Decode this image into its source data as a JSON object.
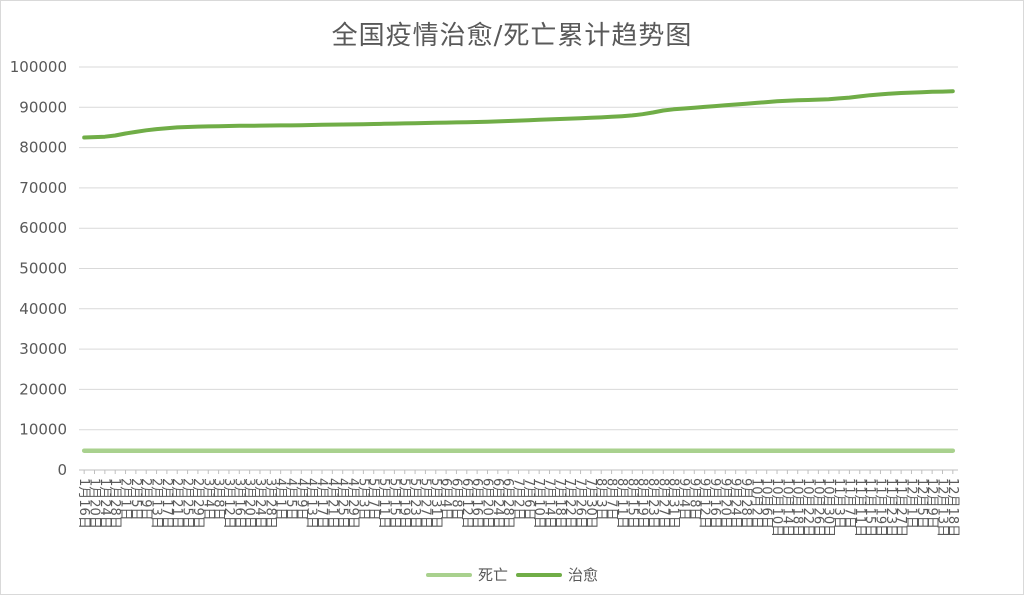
{
  "chart_data": {
    "type": "line",
    "title": "全国疫情治愈/死亡累计趋势图",
    "xlabel": "",
    "ylabel": "",
    "ylim": [
      0,
      100000
    ],
    "yticks": [
      0,
      10000,
      20000,
      30000,
      40000,
      50000,
      60000,
      70000,
      80000,
      90000,
      100000
    ],
    "grid": true,
    "legend_position": "bottom",
    "x": [
      "1月16日",
      "1月20日",
      "1月24日",
      "1月28日",
      "2月1日",
      "2月5日",
      "2月9日",
      "2月13日",
      "2月17日",
      "2月21日",
      "2月25日",
      "2月29日",
      "3月4日",
      "3月8日",
      "3月12日",
      "3月16日",
      "3月20日",
      "3月24日",
      "3月28日",
      "4月1日",
      "4月5日",
      "4月9日",
      "4月13日",
      "4月17日",
      "4月21日",
      "4月25日",
      "4月29日",
      "5月3日",
      "5月7日",
      "5月11日",
      "5月15日",
      "5月19日",
      "5月23日",
      "5月27日",
      "5月31日",
      "6月4日",
      "6月8日",
      "6月12日",
      "6月16日",
      "6月20日",
      "6月24日",
      "6月28日",
      "7月2日",
      "7月6日",
      "7月10日",
      "7月14日",
      "7月18日",
      "7月22日",
      "7月26日",
      "7月30日",
      "8月3日",
      "8月7日",
      "8月11日",
      "8月15日",
      "8月19日",
      "8月23日",
      "8月27日",
      "8月31日",
      "9月4日",
      "9月8日",
      "9月12日",
      "9月16日",
      "9月20日",
      "9月24日",
      "9月28日",
      "10月2日",
      "10月6日",
      "10月10日",
      "10月14日",
      "10月18日",
      "10月22日",
      "10月26日",
      "10月30日",
      "11月3日",
      "11月7日",
      "11月11日",
      "11月15日",
      "11月19日",
      "11月23日",
      "11月27日",
      "12月1日",
      "12月5日",
      "12月9日",
      "12月13日",
      "12月18日"
    ],
    "series": [
      {
        "name": "死亡",
        "color": "#a9d18e",
        "values": [
          4800,
          4800,
          4800,
          4800,
          4800,
          4800,
          4800,
          4800,
          4800,
          4800,
          4800,
          4800,
          4800,
          4800,
          4800,
          4800,
          4800,
          4800,
          4800,
          4800,
          4800,
          4800,
          4800,
          4800,
          4800,
          4800,
          4800,
          4800,
          4800,
          4800,
          4800,
          4800,
          4800,
          4800,
          4800,
          4800,
          4800,
          4800,
          4800,
          4800,
          4800,
          4800,
          4800,
          4800,
          4800,
          4800,
          4800,
          4800,
          4800,
          4800,
          4800,
          4800,
          4800,
          4800,
          4800,
          4800,
          4800,
          4800,
          4800,
          4800,
          4800,
          4800,
          4800,
          4800,
          4800,
          4800,
          4800,
          4800,
          4800,
          4800,
          4800,
          4800,
          4800,
          4800,
          4800,
          4800,
          4800,
          4800,
          4800,
          4800,
          4800,
          4800,
          4800,
          4800,
          4800
        ]
      },
      {
        "name": "治愈",
        "color": "#70ad47",
        "values": [
          82500,
          82600,
          82700,
          83000,
          83500,
          83900,
          84300,
          84600,
          84800,
          85000,
          85100,
          85200,
          85250,
          85300,
          85350,
          85400,
          85420,
          85450,
          85480,
          85500,
          85520,
          85550,
          85600,
          85650,
          85700,
          85720,
          85750,
          85800,
          85850,
          85900,
          85950,
          86000,
          86050,
          86100,
          86150,
          86200,
          86250,
          86300,
          86350,
          86400,
          86500,
          86600,
          86700,
          86800,
          86900,
          87000,
          87100,
          87200,
          87300,
          87400,
          87500,
          87650,
          87800,
          88000,
          88300,
          88700,
          89200,
          89500,
          89700,
          89900,
          90100,
          90300,
          90500,
          90700,
          90900,
          91100,
          91300,
          91500,
          91650,
          91750,
          91800,
          91900,
          92000,
          92200,
          92400,
          92700,
          93000,
          93200,
          93400,
          93550,
          93650,
          93750,
          93850,
          93900,
          94000
        ]
      }
    ]
  }
}
